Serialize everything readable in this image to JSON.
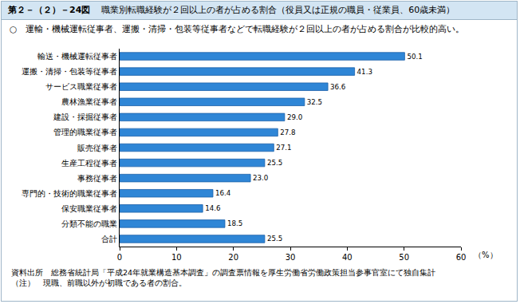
{
  "chart_data": {
    "type": "bar",
    "orientation": "horizontal",
    "figure_number": "第２－（２）－24図",
    "title": "職業別転職経験が２回以上の者が占める割合（役員又は正規の職員・従業員、60歳未満）",
    "subtitle": "○　運輸・機械運転従事者、運搬・清掃・包装等従事者などで転職経験が２回以上の者が占める割合が比較的高い。",
    "x_label": "（%）",
    "categories": [
      "輸送・機械運転従事者",
      "運搬・清掃・包装等従事者",
      "サービス職業従事者",
      "農林漁業従事者",
      "建設・採掘従事者",
      "管理的職業従事者",
      "販売従事者",
      "生産工程従事者",
      "事務従事者",
      "専門的・技術的職業従事者",
      "保安職業従事者",
      "分類不能の職業",
      "合計"
    ],
    "values": [
      50.1,
      41.3,
      36.6,
      32.5,
      29.0,
      27.8,
      27.1,
      25.5,
      23.0,
      16.4,
      14.6,
      18.5,
      25.5
    ],
    "value_labels": [
      "50.1",
      "41.3",
      "36.6",
      "32.5",
      "29.0",
      "27.8",
      "27.1",
      "25.5",
      "23.0",
      "16.4",
      "14.6",
      "18.5",
      "25.5"
    ],
    "data_labels": true,
    "color": "#2f86d6",
    "xlim": [
      0,
      60
    ],
    "xticks": [
      0,
      10,
      20,
      30,
      40,
      50,
      60
    ],
    "grid": false,
    "annotations": [
      "資料出所　総務省統計局「平成24年就業構造基本調査」の調査票情報を厚生労働省労働政策担当参事官室にて独自集計",
      "（注）　現職、前職以外が初職である者の割合。"
    ]
  }
}
